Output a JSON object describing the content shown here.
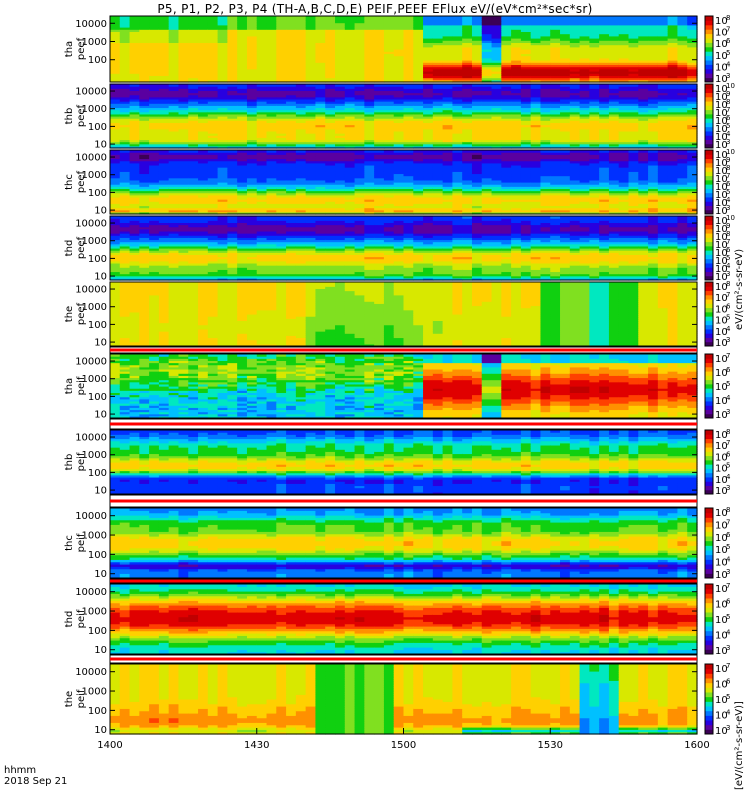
{
  "title": "P5, P1, P2, P3, P4 (TH-A,B,C,D,E) PEIF,PEEF EFlux eV/(eV*cm²*sec*sr)",
  "time_label": "hhmm",
  "date_label": "2018 Sep 21",
  "units_electron": "eV/(cm²-s-sr-eV)",
  "units_ion": "[eV/(cm²-s-sr-eV)]",
  "palette": [
    "#3b0055",
    "#5a00a0",
    "#2800e0",
    "#0030ff",
    "#0078ff",
    "#00c0ff",
    "#00e8c0",
    "#10d010",
    "#80e020",
    "#d8e800",
    "#ffd000",
    "#ff9000",
    "#ff4000",
    "#e00000",
    "#c00000"
  ],
  "chart_data": {
    "type": "heatmap",
    "x_axis": {
      "range": [
        1400,
        1600
      ],
      "tick_values": [
        1400,
        1430,
        1500,
        1530,
        1600
      ],
      "tick_labels": [
        "1400",
        "1430",
        "1500",
        "1530",
        "1600"
      ]
    },
    "y_axis": {
      "scale": "log",
      "range_ev": [
        6,
        25000
      ]
    },
    "panels": [
      {
        "probe": "tha",
        "product": "peef",
        "ylabel_top": "tha",
        "ylabel_bottom": "peef",
        "yticks": [
          "10000",
          "1000",
          "100"
        ],
        "cb_exp": [
          "8",
          "7",
          "6",
          "5",
          "4",
          "3"
        ]
      },
      {
        "probe": "thb",
        "product": "peef",
        "ylabel_top": "thb",
        "ylabel_bottom": "peef",
        "yticks": [
          "10000",
          "1000",
          "100",
          "10"
        ],
        "cb_exp": [
          "10",
          "9",
          "8",
          "7",
          "6",
          "5",
          "4",
          "3"
        ]
      },
      {
        "probe": "thc",
        "product": "peef",
        "ylabel_top": "thc",
        "ylabel_bottom": "peef",
        "yticks": [
          "10000",
          "1000",
          "100",
          "10"
        ],
        "cb_exp": [
          "10",
          "9",
          "8",
          "7",
          "6",
          "5",
          "4",
          "3"
        ]
      },
      {
        "probe": "thd",
        "product": "peef",
        "ylabel_top": "thd",
        "ylabel_bottom": "peef",
        "yticks": [
          "10000",
          "1000",
          "100",
          "10"
        ],
        "cb_exp": [
          "10",
          "9",
          "8",
          "7",
          "6",
          "5",
          "4",
          "3"
        ]
      },
      {
        "probe": "the",
        "product": "peef",
        "ylabel_top": "the",
        "ylabel_bottom": "peef",
        "yticks": [
          "10000",
          "1000",
          "100",
          "10"
        ],
        "cb_exp": [
          "8",
          "7",
          "6",
          "5",
          "4",
          "3"
        ]
      },
      {
        "probe": "tha",
        "product": "peif",
        "ylabel_top": "tha",
        "ylabel_bottom": "peif",
        "yticks": [
          "10000",
          "1000",
          "100",
          "10"
        ],
        "cb_exp": [
          "7",
          "6",
          "5",
          "4",
          "3"
        ]
      },
      {
        "probe": "thb",
        "product": "peif",
        "ylabel_top": "thb",
        "ylabel_bottom": "peif",
        "yticks": [
          "10000",
          "1000",
          "100",
          "10"
        ],
        "cb_exp": [
          "8",
          "7",
          "6",
          "5",
          "4",
          "3"
        ]
      },
      {
        "probe": "thc",
        "product": "peif",
        "ylabel_top": "thc",
        "ylabel_bottom": "peif",
        "yticks": [
          "10000",
          "1000",
          "100",
          "10"
        ],
        "cb_exp": [
          "8",
          "7",
          "6",
          "5",
          "4",
          "3"
        ]
      },
      {
        "probe": "thd",
        "product": "peif",
        "ylabel_top": "thd",
        "ylabel_bottom": "peif",
        "yticks": [
          "10000",
          "1000",
          "100",
          "10"
        ],
        "cb_exp": [
          "7",
          "6",
          "5",
          "4",
          "3"
        ]
      },
      {
        "probe": "the",
        "product": "peif",
        "ylabel_top": "the",
        "ylabel_bottom": "peif",
        "yticks": [
          "10000",
          "1000",
          "100",
          "10"
        ],
        "cb_exp": [
          "7",
          "6",
          "5",
          "4",
          "3"
        ]
      }
    ]
  }
}
